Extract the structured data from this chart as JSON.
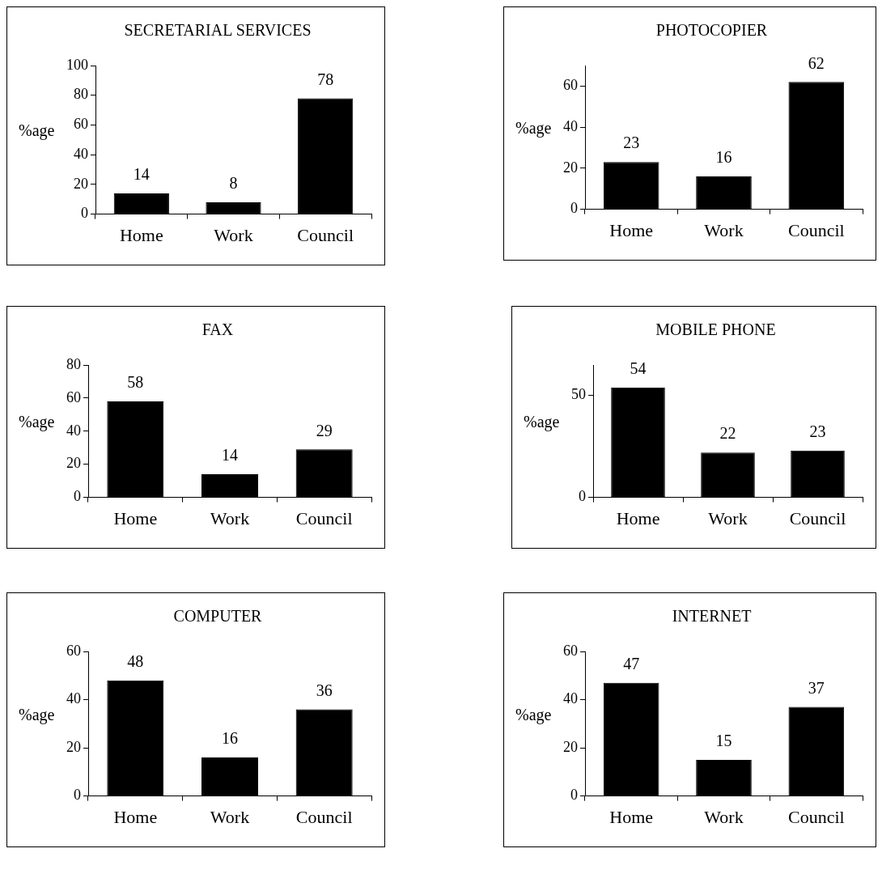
{
  "chart_data": [
    {
      "type": "bar",
      "title": "SECRETARIAL SERVICES",
      "ylabel": "%age",
      "categories": [
        "Home",
        "Work",
        "Council"
      ],
      "values": [
        14,
        8,
        78
      ],
      "color": "#000000",
      "ylim": [
        0,
        100
      ],
      "yticks": [
        0,
        20,
        40,
        60,
        80,
        100
      ],
      "data_labels": true,
      "grid": false,
      "legend": false
    },
    {
      "type": "bar",
      "title": "PHOTOCOPIER",
      "ylabel": "%age",
      "categories": [
        "Home",
        "Work",
        "Council"
      ],
      "values": [
        23,
        16,
        62
      ],
      "color": "#000000",
      "ylim": [
        0,
        70
      ],
      "yticks": [
        0,
        20,
        40,
        60
      ],
      "data_labels": true,
      "grid": false,
      "legend": false
    },
    {
      "type": "bar",
      "title": "FAX",
      "ylabel": "%age",
      "categories": [
        "Home",
        "Work",
        "Council"
      ],
      "values": [
        58,
        14,
        29
      ],
      "color": "#000000",
      "ylim": [
        0,
        80
      ],
      "yticks": [
        0,
        20,
        40,
        60,
        80
      ],
      "data_labels": true,
      "grid": false,
      "legend": false
    },
    {
      "type": "bar",
      "title": "MOBILE PHONE",
      "ylabel": "%age",
      "categories": [
        "Home",
        "Work",
        "Council"
      ],
      "values": [
        54,
        22,
        23
      ],
      "color": "#000000",
      "ylim": [
        0,
        65
      ],
      "yticks": [
        0,
        50
      ],
      "data_labels": true,
      "grid": false,
      "legend": false
    },
    {
      "type": "bar",
      "title": "COMPUTER",
      "ylabel": "%age",
      "categories": [
        "Home",
        "Work",
        "Council"
      ],
      "values": [
        48,
        16,
        36
      ],
      "color": "#000000",
      "ylim": [
        0,
        60
      ],
      "yticks": [
        0,
        20,
        40,
        60
      ],
      "data_labels": true,
      "grid": false,
      "legend": false
    },
    {
      "type": "bar",
      "title": "INTERNET",
      "ylabel": "%age",
      "categories": [
        "Home",
        "Work",
        "Council"
      ],
      "values": [
        47,
        15,
        37
      ],
      "color": "#000000",
      "ylim": [
        0,
        60
      ],
      "yticks": [
        0,
        20,
        40,
        60
      ],
      "data_labels": true,
      "grid": false,
      "legend": false
    }
  ]
}
